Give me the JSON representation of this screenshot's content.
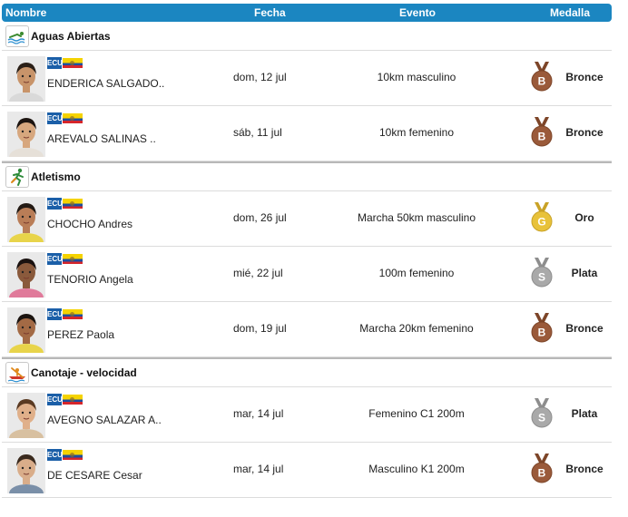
{
  "header": {
    "name": "Nombre",
    "date": "Fecha",
    "event": "Evento",
    "medal": "Medalla"
  },
  "colors": {
    "header_bg": "#1b86c1",
    "gold": "#e8c23a",
    "silver": "#a9a9a9",
    "bronze": "#9a5a3a"
  },
  "sections": [
    {
      "sport": "Aguas Abiertas",
      "icon": "swimming-icon",
      "rows": [
        {
          "country": "ECU",
          "name": "ENDERICA SALGADO..",
          "date": "dom, 12 jul",
          "event": "10km masculino",
          "medal_letter": "B",
          "medal": "Bronce",
          "medal_type": "bronze"
        },
        {
          "country": "ECU",
          "name": "AREVALO SALINAS ..",
          "date": "sáb, 11 jul",
          "event": "10km femenino",
          "medal_letter": "B",
          "medal": "Bronce",
          "medal_type": "bronze"
        }
      ]
    },
    {
      "sport": "Atletismo",
      "icon": "running-icon",
      "rows": [
        {
          "country": "ECU",
          "name": "CHOCHO Andres",
          "date": "dom, 26 jul",
          "event": "Marcha 50km masculino",
          "medal_letter": "G",
          "medal": "Oro",
          "medal_type": "gold"
        },
        {
          "country": "ECU",
          "name": "TENORIO Angela",
          "date": "mié, 22 jul",
          "event": "100m femenino",
          "medal_letter": "S",
          "medal": "Plata",
          "medal_type": "silver"
        },
        {
          "country": "ECU",
          "name": "PEREZ Paola",
          "date": "dom, 19 jul",
          "event": "Marcha 20km femenino",
          "medal_letter": "B",
          "medal": "Bronce",
          "medal_type": "bronze"
        }
      ]
    },
    {
      "sport": "Canotaje - velocidad",
      "icon": "canoe-icon",
      "rows": [
        {
          "country": "ECU",
          "name": "AVEGNO SALAZAR A..",
          "date": "mar, 14 jul",
          "event": "Femenino C1 200m",
          "medal_letter": "S",
          "medal": "Plata",
          "medal_type": "silver"
        },
        {
          "country": "ECU",
          "name": "DE CESARE Cesar",
          "date": "mar, 14 jul",
          "event": "Masculino K1 200m",
          "medal_letter": "B",
          "medal": "Bronce",
          "medal_type": "bronze"
        }
      ]
    }
  ]
}
